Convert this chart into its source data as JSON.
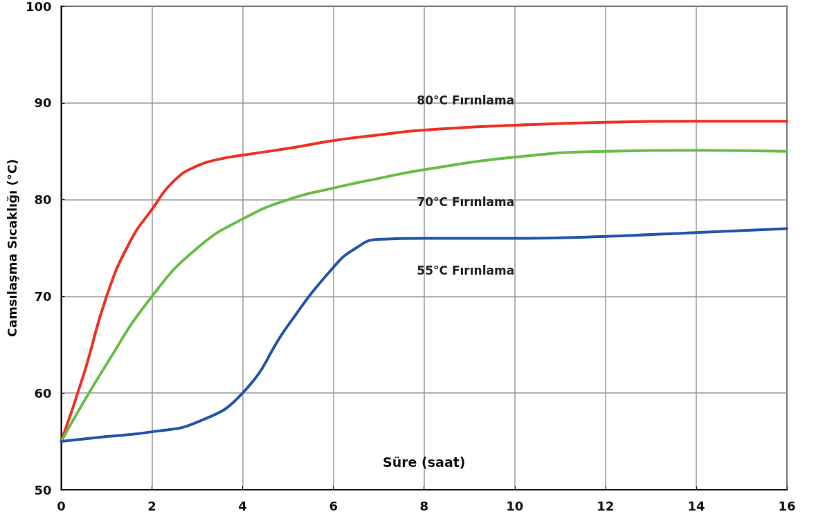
{
  "chart_data": {
    "type": "line",
    "xlabel": "Süre (saat)",
    "ylabel": "Camsılaşma Sıcaklığı (°C)",
    "xlim": [
      0,
      16
    ],
    "xticks": [
      0,
      2,
      4,
      6,
      8,
      10,
      12,
      14,
      16
    ],
    "ylim": [
      50,
      100
    ],
    "yticks": [
      50,
      60,
      70,
      80,
      90,
      100
    ],
    "grid": true,
    "legend": false,
    "marker": "none",
    "line_style": "solid",
    "series": [
      {
        "name": "80°C Fırınlama",
        "color": "#ee3124",
        "x": [
          0,
          0.5,
          1,
          1.5,
          2,
          2.5,
          3,
          3.5,
          4,
          5,
          6,
          7,
          8,
          10,
          12,
          14,
          16
        ],
        "values": [
          55,
          62,
          70,
          75.5,
          79,
          82,
          83.5,
          84.2,
          84.6,
          85.3,
          86.1,
          86.7,
          87.2,
          87.7,
          88,
          88.1,
          88.1
        ]
      },
      {
        "name": "70°C Fırınlama",
        "color": "#6abd45",
        "x": [
          0,
          1,
          2,
          3,
          4,
          5,
          6,
          7,
          8,
          10,
          12,
          14,
          16
        ],
        "values": [
          55,
          63,
          70,
          75,
          78,
          80,
          81.2,
          82.2,
          83.1,
          84.4,
          85,
          85.1,
          85
        ]
      },
      {
        "name": "55°C Fırınlama",
        "color": "#2356a8",
        "x": [
          0,
          1,
          2,
          3,
          4,
          5,
          6,
          6.5,
          7,
          8,
          10,
          12,
          14,
          16
        ],
        "values": [
          55,
          55.5,
          56,
          57,
          60,
          67,
          73,
          75,
          75.9,
          76,
          76,
          76.2,
          76.6,
          77
        ]
      }
    ]
  }
}
